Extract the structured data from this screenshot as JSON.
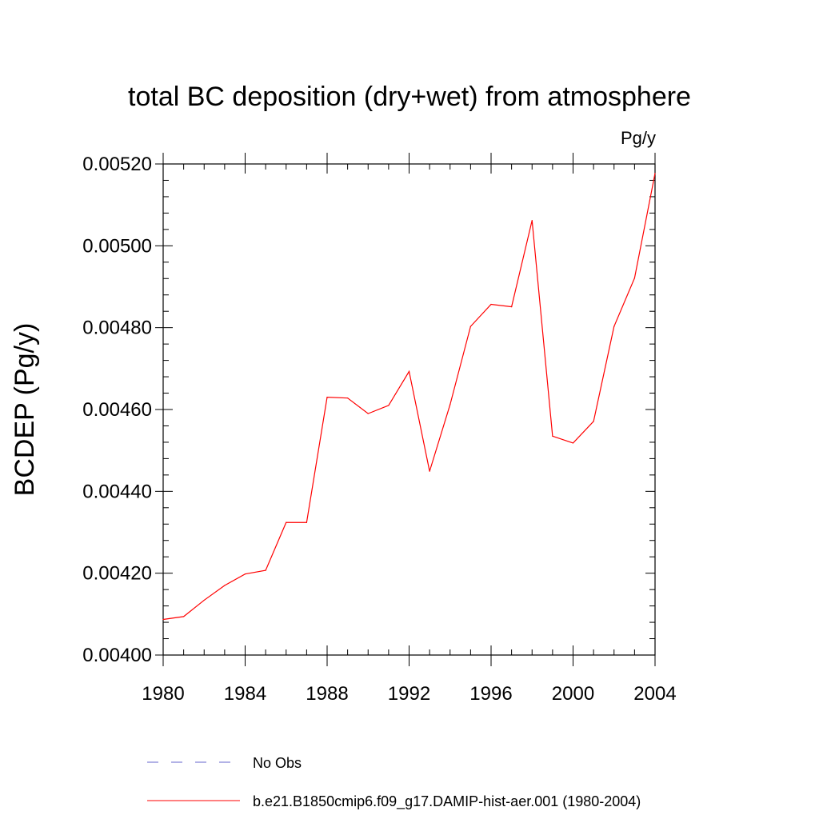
{
  "chart_data": {
    "type": "line",
    "title": "total BC deposition (dry+wet) from atmosphere",
    "units": "Pg/y",
    "xlabel": "",
    "ylabel": "BCDEP  (Pg/y)",
    "xlim": [
      1980,
      2004
    ],
    "ylim": [
      0.004,
      0.0052
    ],
    "x_ticks": [
      1980,
      1984,
      1988,
      1992,
      1996,
      2000,
      2004
    ],
    "x_tick_labels": [
      "1980",
      "1984",
      "1988",
      "1992",
      "1996",
      "2000",
      "2004"
    ],
    "y_ticks": [
      0.004,
      0.0042,
      0.0044,
      0.0046,
      0.0048,
      0.005,
      0.0052
    ],
    "y_tick_labels": [
      "0.00400",
      "0.00420",
      "0.00440",
      "0.00460",
      "0.00480",
      "0.00500",
      "0.00520"
    ],
    "grid": false,
    "legend_position": "bottom",
    "series": [
      {
        "name": "No Obs",
        "color": "#6666cc",
        "style": "dashed",
        "x": [],
        "values": []
      },
      {
        "name": "b.e21.B1850cmip6.f09_g17.DAMIP-hist-aer.001 (1980-2004)",
        "color": "#ff0000",
        "style": "solid",
        "x": [
          1980,
          1981,
          1982,
          1983,
          1984,
          1985,
          1986,
          1987,
          1988,
          1989,
          1990,
          1991,
          1992,
          1993,
          1994,
          1995,
          1996,
          1997,
          1998,
          1999,
          2000,
          2001,
          2002,
          2003,
          2004
        ],
        "values": [
          0.004087,
          0.004094,
          0.004134,
          0.00417,
          0.004198,
          0.004207,
          0.004324,
          0.004324,
          0.00463,
          0.004628,
          0.00459,
          0.00461,
          0.004693,
          0.004449,
          0.004612,
          0.004803,
          0.004857,
          0.004851,
          0.005062,
          0.004535,
          0.004518,
          0.004571,
          0.004803,
          0.004921,
          0.005177
        ]
      }
    ]
  }
}
